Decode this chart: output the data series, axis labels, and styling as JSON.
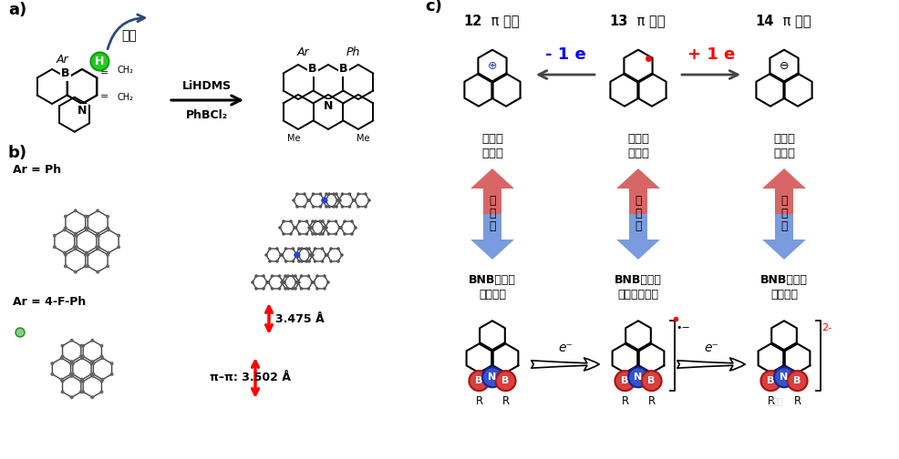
{
  "panel_a": "a)",
  "panel_b": "b)",
  "panel_c": "c)",
  "reagents1": "LiHDMS",
  "reagents2": "PhBCl₂",
  "activation": "活化",
  "pi_nums": [
    "12",
    "13",
    "14"
  ],
  "pi_rest": " π 电子",
  "phenalene_labels_line1": [
    "非那烯",
    "非那烯",
    "非那烯"
  ],
  "phenalene_labels_line2": [
    "阳离子",
    "自由基",
    "阴离子"
  ],
  "bnb_labels_bold": [
    "BNB非那烯",
    "BNB非那烯",
    "BNB非那烯"
  ],
  "bnb_labels_line2": [
    "中性分子",
    "自由基阴离子",
    "双阴离子"
  ],
  "iso_text": "等电体",
  "minus1e": "- 1 e",
  "plus1e": "+ 1 e",
  "eminus": "e⁻",
  "ar_ph": "Ar = Ph",
  "ar_4fph": "Ar = 4-F-Ph",
  "dist1": "3.475 Å",
  "dist2": "π–π: 3.502 Å",
  "bg": "#ffffff",
  "superscript_2minus": "2-",
  "radical_minus": "•−"
}
